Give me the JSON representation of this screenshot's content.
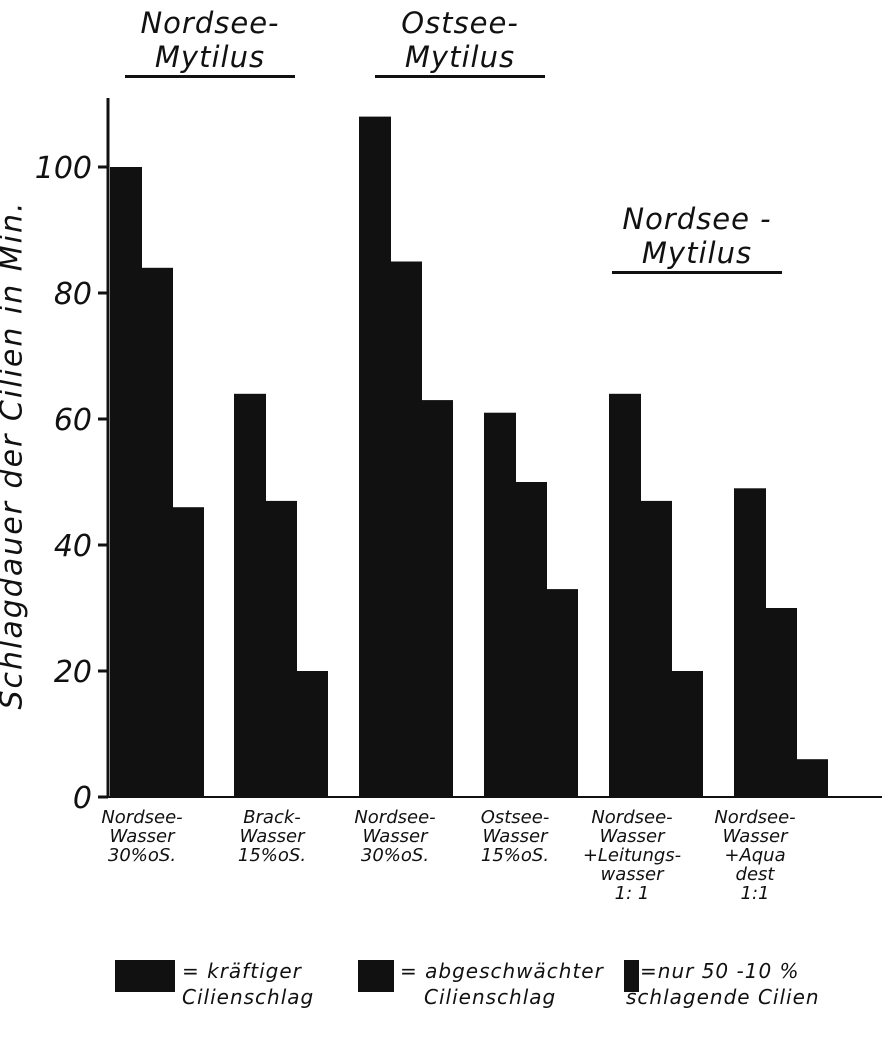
{
  "chart_data": {
    "type": "bar",
    "ylabel": "Schlagdauer der Cilien in Min.",
    "ylim": [
      0,
      110
    ],
    "yticks": [
      "0",
      "20",
      "40",
      "60",
      "80",
      "100"
    ],
    "headers": [
      {
        "line1": "Nordsee-",
        "line2": "Mytilus"
      },
      {
        "line1": "Ostsee-",
        "line2": "Mytilus"
      },
      {
        "line1": "Nordsee -",
        "line2": "Mytilus"
      }
    ],
    "groups": [
      {
        "label": [
          "Nordsee-",
          "Wasser",
          "30%oS."
        ],
        "values": [
          100,
          84,
          46
        ]
      },
      {
        "label": [
          "Brack-",
          "Wasser",
          "15%oS."
        ],
        "values": [
          64,
          47,
          20
        ]
      },
      {
        "label": [
          "Nordsee-",
          "Wasser",
          "30%oS."
        ],
        "values": [
          108,
          85,
          63
        ]
      },
      {
        "label": [
          "Ostsee-",
          "Wasser",
          "15%oS."
        ],
        "values": [
          61,
          50,
          33
        ]
      },
      {
        "label": [
          "Nordsee-",
          "Wasser",
          "+Leitungs-",
          "wasser",
          "1: 1"
        ],
        "values": [
          64,
          47,
          20
        ]
      },
      {
        "label": [
          "Nordsee-",
          "Wasser",
          "+Aqua",
          "dest",
          "1:1"
        ],
        "values": [
          49,
          30,
          6
        ]
      }
    ],
    "series_legend": [
      {
        "symbol": "=",
        "line1": "kräftiger",
        "line2": "Cilienschlag"
      },
      {
        "symbol": "=",
        "line1": "abgeschwächter",
        "line2": "Cilienschlag"
      },
      {
        "symbol": "=",
        "line1": "nur 50 -10 %",
        "line2": "schlagende Cilien"
      }
    ],
    "colors": {
      "bar": "#111111",
      "axis": "#111111"
    }
  }
}
